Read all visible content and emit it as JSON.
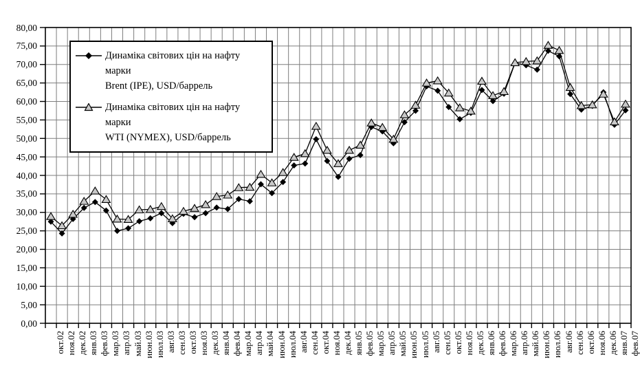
{
  "chart_data": {
    "type": "line",
    "title": "",
    "xlabel": "",
    "ylabel": "",
    "ylim": [
      0,
      80
    ],
    "ytick_step": 5,
    "ytick_labels": [
      "0,00",
      "5,00",
      "10,00",
      "15,00",
      "20,00",
      "25,00",
      "30,00",
      "35,00",
      "40,00",
      "45,00",
      "50,00",
      "55,00",
      "60,00",
      "65,00",
      "70,00",
      "75,00",
      "80,00"
    ],
    "grid": true,
    "legend_position": "top-left",
    "categories": [
      "окт.02",
      "ноя.02",
      "дек.02",
      "янв.03",
      "фев.03",
      "мар.03",
      "апр.03",
      "май.03",
      "июн.03",
      "июл.03",
      "авг.03",
      "сен.03",
      "окт.03",
      "ноя.03",
      "дек.03",
      "янв.04",
      "фев.04",
      "мар.04",
      "апр.04",
      "май.04",
      "июн.04",
      "июл.04",
      "авг.04",
      "сен.04",
      "окт.04",
      "ноя.04",
      "дек.04",
      "янв.05",
      "фев.05",
      "мар.05",
      "апр.05",
      "май.05",
      "июн.05",
      "июл.05",
      "авг.05",
      "сен.05",
      "окт.05",
      "ноя.05",
      "дек.05",
      "янв.06",
      "фев.06",
      "мар.06",
      "апр.06",
      "май.06",
      "июн.06",
      "июл.06",
      "авг.06",
      "сен.06",
      "окт.06",
      "ноя.06",
      "дек.06",
      "янв.07",
      "фев.07"
    ],
    "series": [
      {
        "name": "Динаміка світових цін на нафту марки Brent (IPE), USD/баррель",
        "marker": "diamond",
        "line_color": "#000000",
        "marker_fill": "#000000",
        "values": [
          27.5,
          24.3,
          28.2,
          31.2,
          32.8,
          30.5,
          25.0,
          25.7,
          27.6,
          28.4,
          29.8,
          27.1,
          29.6,
          28.7,
          29.8,
          31.3,
          30.9,
          33.6,
          33.0,
          37.6,
          35.2,
          38.2,
          42.7,
          43.2,
          49.8,
          43.9,
          39.6,
          44.5,
          45.5,
          53.1,
          51.9,
          48.7,
          54.4,
          57.5,
          64.1,
          62.9,
          58.5,
          55.2,
          56.9,
          63.1,
          60.1,
          62.1,
          70.4,
          69.8,
          68.6,
          73.7,
          72.2,
          62.0,
          57.8,
          58.8,
          62.5,
          53.7,
          57.6
        ]
      },
      {
        "name": "Динаміка світових цін на нафту марки WTI (NYMEX), USD/баррель",
        "marker": "triangle",
        "line_color": "#000000",
        "marker_fill": "#c8c8c8",
        "values": [
          28.9,
          26.4,
          29.5,
          33.0,
          35.8,
          33.5,
          28.2,
          28.1,
          30.7,
          30.8,
          31.6,
          28.3,
          30.3,
          31.1,
          32.1,
          34.3,
          34.7,
          36.7,
          36.8,
          40.3,
          38.0,
          40.8,
          44.9,
          45.9,
          53.3,
          46.8,
          43.2,
          46.8,
          48.2,
          54.2,
          53.0,
          49.8,
          56.4,
          59.0,
          65.0,
          65.6,
          62.3,
          58.3,
          57.4,
          65.5,
          61.6,
          62.7,
          70.5,
          70.8,
          71.0,
          75.2,
          73.8,
          63.8,
          58.9,
          59.1,
          62.0,
          54.5,
          59.3
        ]
      }
    ]
  },
  "legend": {
    "items": [
      {
        "series": "brent",
        "line1": "Динаміка світових цін на нафту марки",
        "line2": "Brent (IPE), USD/баррель"
      },
      {
        "series": "wti",
        "line1": "Динаміка світових цін на нафту марки",
        "line2": "WTI (NYMEX), USD/баррель"
      }
    ]
  },
  "colors": {
    "background": "#ffffff",
    "grid": "#7d7d7d",
    "axis": "#000000",
    "brent_marker": "#000000",
    "wti_marker_fill": "#c8c8c8",
    "marker_stroke": "#000000"
  }
}
